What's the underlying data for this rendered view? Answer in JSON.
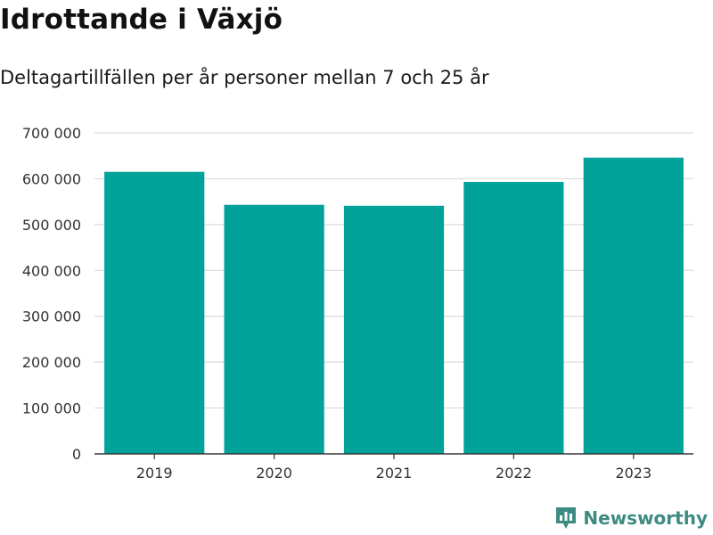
{
  "header": {
    "title": "Idrottande i Växjö",
    "subtitle": "Deltagartillfällen per år personer mellan 7 och 25 år"
  },
  "brand": {
    "name": "Newsworthy",
    "icon": "newsworthy-logo-icon"
  },
  "colors": {
    "bar": "#00a29a",
    "grid": "#dcdcdc",
    "axis": "#333333",
    "brand": "#3d8b82"
  },
  "chart_data": {
    "type": "bar",
    "title": "Idrottande i Växjö",
    "subtitle": "Deltagartillfällen per år personer mellan 7 och 25 år",
    "xlabel": "",
    "ylabel": "",
    "categories": [
      "2019",
      "2020",
      "2021",
      "2022",
      "2023"
    ],
    "values": [
      615000,
      543000,
      541000,
      593000,
      646000
    ],
    "ylim": [
      0,
      700000
    ],
    "yticks": [
      0,
      100000,
      200000,
      300000,
      400000,
      500000,
      600000,
      700000
    ],
    "ytick_labels": [
      "0",
      "100 000",
      "200 000",
      "300 000",
      "400 000",
      "500 000",
      "600 000",
      "700 000"
    ],
    "grid": true,
    "legend": "none"
  }
}
